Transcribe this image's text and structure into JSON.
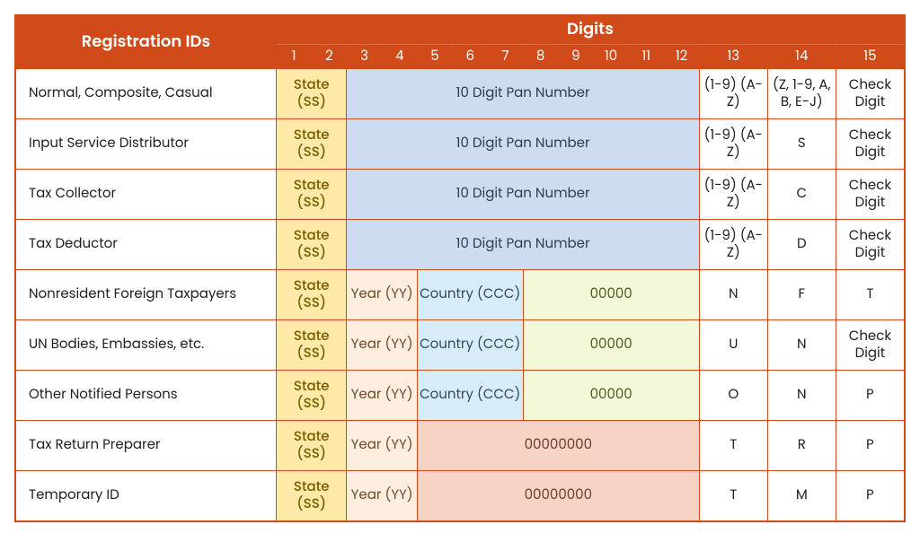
{
  "header": {
    "registration_ids": "Registration IDs",
    "digits": "Digits"
  },
  "digit_numbers": [
    "1",
    "2",
    "3",
    "4",
    "5",
    "6",
    "7",
    "8",
    "9",
    "10",
    "11",
    "12",
    "13",
    "14",
    "15"
  ],
  "cell_types": {
    "state": {
      "class": "state",
      "bg": "#ffe9a8"
    },
    "pan": {
      "class": "pan",
      "bg": "#cddcf0"
    },
    "year": {
      "class": "year",
      "bg": "#fdeee0"
    },
    "country": {
      "class": "country",
      "bg": "#d8ecf7"
    },
    "zeros5": {
      "class": "zeros5",
      "bg": "#f3f8d8"
    },
    "zeros8": {
      "class": "zeros8",
      "bg": "#f6d3c5"
    },
    "plain": {
      "class": "plain",
      "bg": "#ffffff"
    }
  },
  "rows": [
    {
      "label": "Normal, Composite, Casual",
      "cells": [
        {
          "type": "state",
          "span": 2,
          "text": "State (SS)"
        },
        {
          "type": "pan",
          "span": 10,
          "text": "10 Digit Pan Number"
        },
        {
          "type": "plain",
          "span": 1,
          "text": "(1-9) (A-Z)"
        },
        {
          "type": "plain",
          "span": 1,
          "text": "(Z, 1-9, A, B, E-J)"
        },
        {
          "type": "plain",
          "span": 1,
          "text": "Check Digit"
        }
      ]
    },
    {
      "label": "Input Service Distributor",
      "cells": [
        {
          "type": "state",
          "span": 2,
          "text": "State (SS)"
        },
        {
          "type": "pan",
          "span": 10,
          "text": "10 Digit Pan Number"
        },
        {
          "type": "plain",
          "span": 1,
          "text": "(1-9) (A-Z)"
        },
        {
          "type": "plain",
          "span": 1,
          "text": "S"
        },
        {
          "type": "plain",
          "span": 1,
          "text": "Check Digit"
        }
      ]
    },
    {
      "label": "Tax Collector",
      "cells": [
        {
          "type": "state",
          "span": 2,
          "text": "State (SS)"
        },
        {
          "type": "pan",
          "span": 10,
          "text": "10 Digit Pan Number"
        },
        {
          "type": "plain",
          "span": 1,
          "text": "(1-9) (A-Z)"
        },
        {
          "type": "plain",
          "span": 1,
          "text": "C"
        },
        {
          "type": "plain",
          "span": 1,
          "text": "Check Digit"
        }
      ]
    },
    {
      "label": "Tax Deductor",
      "cells": [
        {
          "type": "state",
          "span": 2,
          "text": "State (SS)"
        },
        {
          "type": "pan",
          "span": 10,
          "text": "10 Digit Pan Number"
        },
        {
          "type": "plain",
          "span": 1,
          "text": "(1-9) (A-Z)"
        },
        {
          "type": "plain",
          "span": 1,
          "text": "D"
        },
        {
          "type": "plain",
          "span": 1,
          "text": "Check Digit"
        }
      ]
    },
    {
      "label": "Nonresident Foreign Taxpayers",
      "cells": [
        {
          "type": "state",
          "span": 2,
          "text": "State (SS)"
        },
        {
          "type": "year",
          "span": 2,
          "text": "Year (YY)"
        },
        {
          "type": "country",
          "span": 3,
          "text": "Country (CCC)"
        },
        {
          "type": "zeros5",
          "span": 5,
          "text": "00000"
        },
        {
          "type": "plain",
          "span": 1,
          "text": "N"
        },
        {
          "type": "plain",
          "span": 1,
          "text": "F"
        },
        {
          "type": "plain",
          "span": 1,
          "text": "T"
        }
      ]
    },
    {
      "label": "UN Bodies, Embassies, etc.",
      "cells": [
        {
          "type": "state",
          "span": 2,
          "text": "State (SS)"
        },
        {
          "type": "year",
          "span": 2,
          "text": "Year (YY)"
        },
        {
          "type": "country",
          "span": 3,
          "text": "Country (CCC)"
        },
        {
          "type": "zeros5",
          "span": 5,
          "text": "00000"
        },
        {
          "type": "plain",
          "span": 1,
          "text": "U"
        },
        {
          "type": "plain",
          "span": 1,
          "text": "N"
        },
        {
          "type": "plain",
          "span": 1,
          "text": "Check Digit"
        }
      ]
    },
    {
      "label": "Other Notified Persons",
      "cells": [
        {
          "type": "state",
          "span": 2,
          "text": "State (SS)"
        },
        {
          "type": "year",
          "span": 2,
          "text": "Year (YY)"
        },
        {
          "type": "country",
          "span": 3,
          "text": "Country (CCC)"
        },
        {
          "type": "zeros5",
          "span": 5,
          "text": "00000"
        },
        {
          "type": "plain",
          "span": 1,
          "text": "O"
        },
        {
          "type": "plain",
          "span": 1,
          "text": "N"
        },
        {
          "type": "plain",
          "span": 1,
          "text": "P"
        }
      ]
    },
    {
      "label": "Tax Return Preparer",
      "cells": [
        {
          "type": "state",
          "span": 2,
          "text": "State (SS)"
        },
        {
          "type": "year",
          "span": 2,
          "text": "Year (YY)"
        },
        {
          "type": "zeros8",
          "span": 8,
          "text": "00000000"
        },
        {
          "type": "plain",
          "span": 1,
          "text": "T"
        },
        {
          "type": "plain",
          "span": 1,
          "text": "R"
        },
        {
          "type": "plain",
          "span": 1,
          "text": "P"
        }
      ]
    },
    {
      "label": "Temporary ID",
      "cells": [
        {
          "type": "state",
          "span": 2,
          "text": "State (SS)"
        },
        {
          "type": "year",
          "span": 2,
          "text": "Year (YY)"
        },
        {
          "type": "zeros8",
          "span": 8,
          "text": "00000000"
        },
        {
          "type": "plain",
          "span": 1,
          "text": "T"
        },
        {
          "type": "plain",
          "span": 1,
          "text": "M"
        },
        {
          "type": "plain",
          "span": 1,
          "text": "P"
        }
      ]
    }
  ],
  "colors": {
    "header_bg": "#d04a1a",
    "header_fg": "#ffffff",
    "border": "#d04a1a",
    "body_fg": "#1f1f1f"
  },
  "font_sizes": {
    "header": 18,
    "digit_num": 15,
    "cell": 15
  }
}
